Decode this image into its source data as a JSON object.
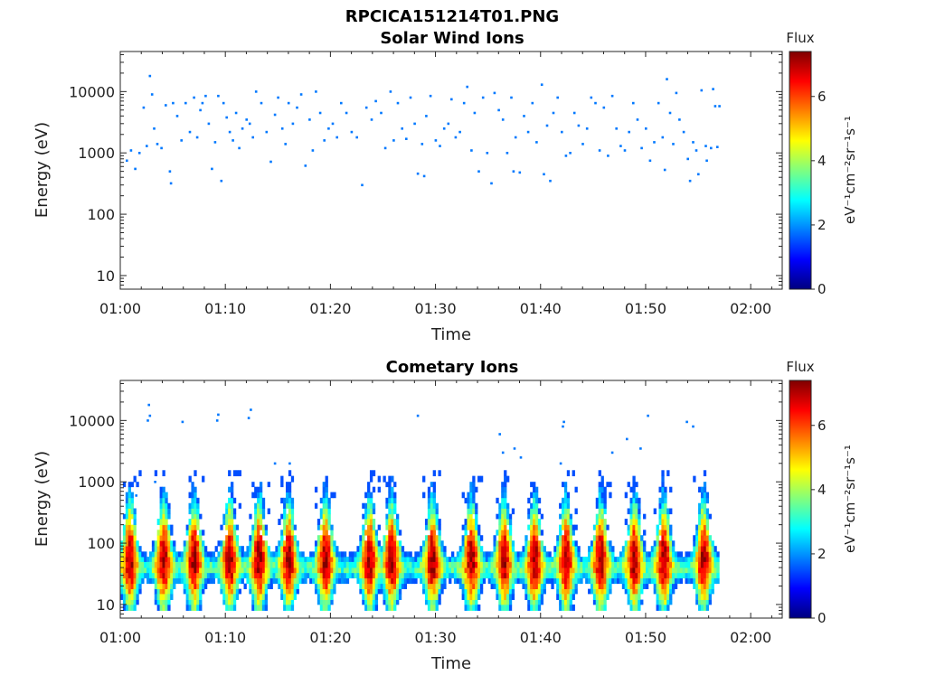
{
  "figure": {
    "title": "RPCICA151214T01.PNG"
  },
  "colormap": {
    "name": "jet",
    "stops": [
      "#00007f",
      "#0000ff",
      "#007fff",
      "#00ffff",
      "#7fff7f",
      "#ffff00",
      "#ff7f00",
      "#ff0000",
      "#7f0000"
    ]
  },
  "chart_data": [
    {
      "type": "heatmap",
      "title": "Solar Wind Ions",
      "xlabel": "Time",
      "ylabel": "Energy (eV)",
      "x_range_minutes": [
        0,
        63
      ],
      "x_ticks": [
        {
          "value": 0,
          "label": "01:00"
        },
        {
          "value": 10,
          "label": "01:10"
        },
        {
          "value": 20,
          "label": "01:20"
        },
        {
          "value": 30,
          "label": "01:30"
        },
        {
          "value": 40,
          "label": "01:40"
        },
        {
          "value": 50,
          "label": "01:50"
        },
        {
          "value": 60,
          "label": "02:00"
        }
      ],
      "y_scale": "log",
      "y_range": [
        6,
        45000
      ],
      "y_ticks": [
        {
          "value": 10,
          "label": "10"
        },
        {
          "value": 100,
          "label": "100"
        },
        {
          "value": 1000,
          "label": "1000"
        },
        {
          "value": 10000,
          "label": "10000"
        }
      ],
      "colorbar": {
        "label": "Flux",
        "unit_label": "eV⁻¹cm⁻²sr⁻¹s⁻¹",
        "range": [
          0,
          7.4
        ],
        "ticks": [
          {
            "value": 0,
            "label": "0"
          },
          {
            "value": 2,
            "label": "2"
          },
          {
            "value": 4,
            "label": "4"
          },
          {
            "value": 6,
            "label": "6"
          }
        ]
      },
      "point_flux": 1.8,
      "points": [
        [
          0.6,
          750
        ],
        [
          1.0,
          1100
        ],
        [
          1.4,
          550
        ],
        [
          1.8,
          1000
        ],
        [
          2.2,
          5500
        ],
        [
          2.5,
          1300
        ],
        [
          2.8,
          18000
        ],
        [
          3.0,
          9000
        ],
        [
          3.2,
          2500
        ],
        [
          3.5,
          1400
        ],
        [
          3.9,
          1200
        ],
        [
          4.3,
          6000
        ],
        [
          4.7,
          500
        ],
        [
          4.8,
          320
        ],
        [
          5.0,
          6500
        ],
        [
          5.4,
          4000
        ],
        [
          5.8,
          1600
        ],
        [
          6.2,
          6500
        ],
        [
          6.6,
          2200
        ],
        [
          7.0,
          8000
        ],
        [
          7.3,
          1800
        ],
        [
          7.6,
          5000
        ],
        [
          7.8,
          6500
        ],
        [
          8.1,
          8500
        ],
        [
          8.4,
          3000
        ],
        [
          8.7,
          550
        ],
        [
          9.0,
          1500
        ],
        [
          9.3,
          8500
        ],
        [
          9.6,
          350
        ],
        [
          9.8,
          6500
        ],
        [
          10.1,
          3800
        ],
        [
          10.4,
          2200
        ],
        [
          10.7,
          1600
        ],
        [
          11.0,
          4500
        ],
        [
          11.3,
          1200
        ],
        [
          11.6,
          2500
        ],
        [
          12.0,
          3500
        ],
        [
          12.3,
          3000
        ],
        [
          12.6,
          1800
        ],
        [
          12.9,
          10000
        ],
        [
          13.4,
          6500
        ],
        [
          13.9,
          2200
        ],
        [
          14.3,
          720
        ],
        [
          14.7,
          4200
        ],
        [
          15.0,
          8000
        ],
        [
          15.4,
          2500
        ],
        [
          15.7,
          1400
        ],
        [
          16.0,
          6500
        ],
        [
          16.4,
          3000
        ],
        [
          16.8,
          5500
        ],
        [
          17.2,
          9000
        ],
        [
          17.6,
          620
        ],
        [
          18.0,
          3500
        ],
        [
          18.3,
          1100
        ],
        [
          18.6,
          10000
        ],
        [
          19.0,
          4500
        ],
        [
          19.4,
          1600
        ],
        [
          19.8,
          2500
        ],
        [
          20.2,
          3000
        ],
        [
          20.6,
          1800
        ],
        [
          21.0,
          6500
        ],
        [
          21.5,
          4500
        ],
        [
          22.0,
          2200
        ],
        [
          22.5,
          1800
        ],
        [
          23.0,
          300
        ],
        [
          23.4,
          5500
        ],
        [
          23.9,
          3500
        ],
        [
          24.3,
          7000
        ],
        [
          24.8,
          4500
        ],
        [
          25.2,
          1200
        ],
        [
          25.7,
          10000
        ],
        [
          26.0,
          1600
        ],
        [
          26.4,
          6500
        ],
        [
          26.8,
          2500
        ],
        [
          27.2,
          1700
        ],
        [
          27.6,
          8000
        ],
        [
          28.0,
          3000
        ],
        [
          28.3,
          460
        ],
        [
          28.7,
          1400
        ],
        [
          29.1,
          4000
        ],
        [
          29.5,
          8500
        ],
        [
          30.0,
          1600
        ],
        [
          30.4,
          1300
        ],
        [
          30.8,
          2500
        ],
        [
          31.2,
          3000
        ],
        [
          31.5,
          7500
        ],
        [
          31.9,
          1800
        ],
        [
          32.3,
          2200
        ],
        [
          32.7,
          6500
        ],
        [
          33.0,
          12000
        ],
        [
          33.4,
          1100
        ],
        [
          33.7,
          4500
        ],
        [
          34.1,
          500
        ],
        [
          34.5,
          8000
        ],
        [
          34.9,
          1000
        ],
        [
          35.3,
          320
        ],
        [
          35.6,
          9500
        ],
        [
          36.0,
          5000
        ],
        [
          36.4,
          3500
        ],
        [
          36.8,
          1000
        ],
        [
          37.2,
          8000
        ],
        [
          37.6,
          1800
        ],
        [
          38.0,
          480
        ],
        [
          38.4,
          4000
        ],
        [
          38.8,
          2200
        ],
        [
          39.2,
          6500
        ],
        [
          39.6,
          1500
        ],
        [
          40.1,
          13000
        ],
        [
          40.3,
          450
        ],
        [
          40.6,
          2800
        ],
        [
          40.9,
          350
        ],
        [
          41.2,
          4500
        ],
        [
          41.6,
          8000
        ],
        [
          42.0,
          2200
        ],
        [
          42.4,
          900
        ],
        [
          42.8,
          1000
        ],
        [
          43.2,
          4500
        ],
        [
          43.6,
          2800
        ],
        [
          44.0,
          1400
        ],
        [
          44.4,
          2500
        ],
        [
          44.8,
          8000
        ],
        [
          45.2,
          6500
        ],
        [
          45.6,
          1100
        ],
        [
          46.0,
          5500
        ],
        [
          46.4,
          900
        ],
        [
          46.8,
          8500
        ],
        [
          47.2,
          2500
        ],
        [
          47.6,
          1300
        ],
        [
          48.0,
          1100
        ],
        [
          48.4,
          2200
        ],
        [
          48.8,
          6500
        ],
        [
          49.2,
          3500
        ],
        [
          49.6,
          1200
        ],
        [
          50.0,
          2500
        ],
        [
          50.4,
          750
        ],
        [
          50.8,
          1500
        ],
        [
          51.2,
          6500
        ],
        [
          51.6,
          1800
        ],
        [
          51.8,
          530
        ],
        [
          52.0,
          16000
        ],
        [
          52.3,
          4500
        ],
        [
          52.6,
          1400
        ],
        [
          52.9,
          9500
        ],
        [
          53.2,
          3500
        ],
        [
          53.6,
          2200
        ],
        [
          54.0,
          800
        ],
        [
          54.2,
          350
        ],
        [
          54.5,
          1500
        ],
        [
          54.8,
          1100
        ],
        [
          55.0,
          450
        ],
        [
          55.3,
          10500
        ],
        [
          55.8,
          750
        ],
        [
          56.2,
          1200
        ],
        [
          56.4,
          11000
        ],
        [
          56.6,
          5800
        ],
        [
          56.8,
          1250
        ],
        [
          57.0,
          5800
        ],
        [
          55.7,
          1300
        ],
        [
          37.4,
          500
        ],
        [
          28.9,
          420
        ]
      ]
    },
    {
      "type": "heatmap",
      "title": "Cometary Ions",
      "xlabel": "Time",
      "ylabel": "Energy (eV)",
      "x_range_minutes": [
        0,
        63
      ],
      "x_ticks": [
        {
          "value": 0,
          "label": "01:00"
        },
        {
          "value": 10,
          "label": "01:10"
        },
        {
          "value": 20,
          "label": "01:20"
        },
        {
          "value": 30,
          "label": "01:30"
        },
        {
          "value": 40,
          "label": "01:40"
        },
        {
          "value": 50,
          "label": "01:50"
        },
        {
          "value": 60,
          "label": "02:00"
        }
      ],
      "y_scale": "log",
      "y_range": [
        6,
        45000
      ],
      "y_ticks": [
        {
          "value": 10,
          "label": "10"
        },
        {
          "value": 100,
          "label": "100"
        },
        {
          "value": 1000,
          "label": "1000"
        },
        {
          "value": 10000,
          "label": "10000"
        }
      ],
      "colorbar": {
        "label": "Flux",
        "unit_label": "eV⁻¹cm⁻²sr⁻¹s⁻¹",
        "range": [
          0,
          7.4
        ],
        "ticks": [
          {
            "value": 0,
            "label": "0"
          },
          {
            "value": 2,
            "label": "2"
          },
          {
            "value": 4,
            "label": "4"
          },
          {
            "value": 6,
            "label": "6"
          }
        ]
      },
      "time_end_minutes": 57,
      "energy_bins": [
        8,
        10,
        12,
        15,
        18,
        22,
        27,
        33,
        40,
        50,
        60,
        73,
        90,
        110,
        135,
        165,
        200,
        250,
        300,
        370,
        450,
        550,
        680,
        830,
        1000,
        1250,
        1550,
        1900,
        2300,
        2800,
        3500,
        4300,
        5300,
        6500,
        8000,
        10000,
        12500,
        15500
      ],
      "bursts": [
        0.8,
        4.0,
        6.9,
        10.3,
        13.1,
        15.9,
        19.4,
        23.6,
        25.7,
        29.6,
        33.3,
        36.4,
        39.3,
        42.3,
        45.6,
        48.8,
        51.6,
        55.4
      ],
      "high_energy_points": [
        [
          2.7,
          18000
        ],
        [
          2.8,
          12000
        ],
        [
          2.6,
          10000
        ],
        [
          5.9,
          9500
        ],
        [
          9.3,
          12500
        ],
        [
          9.2,
          10000
        ],
        [
          12.4,
          15000
        ],
        [
          12.2,
          11000
        ],
        [
          28.3,
          12000
        ],
        [
          36.1,
          6000
        ],
        [
          37.5,
          3500
        ],
        [
          42.2,
          9500
        ],
        [
          42.1,
          8000
        ],
        [
          41.9,
          2000
        ],
        [
          49.5,
          3500
        ],
        [
          50.2,
          12000
        ],
        [
          53.9,
          9500
        ],
        [
          54.5,
          8000
        ],
        [
          36.4,
          3000
        ],
        [
          38.1,
          2500
        ],
        [
          46.8,
          3000
        ],
        [
          48.2,
          5000
        ],
        [
          1.5,
          600
        ],
        [
          3.3,
          1000
        ],
        [
          16.1,
          2000
        ],
        [
          14.7,
          2000
        ]
      ]
    }
  ]
}
